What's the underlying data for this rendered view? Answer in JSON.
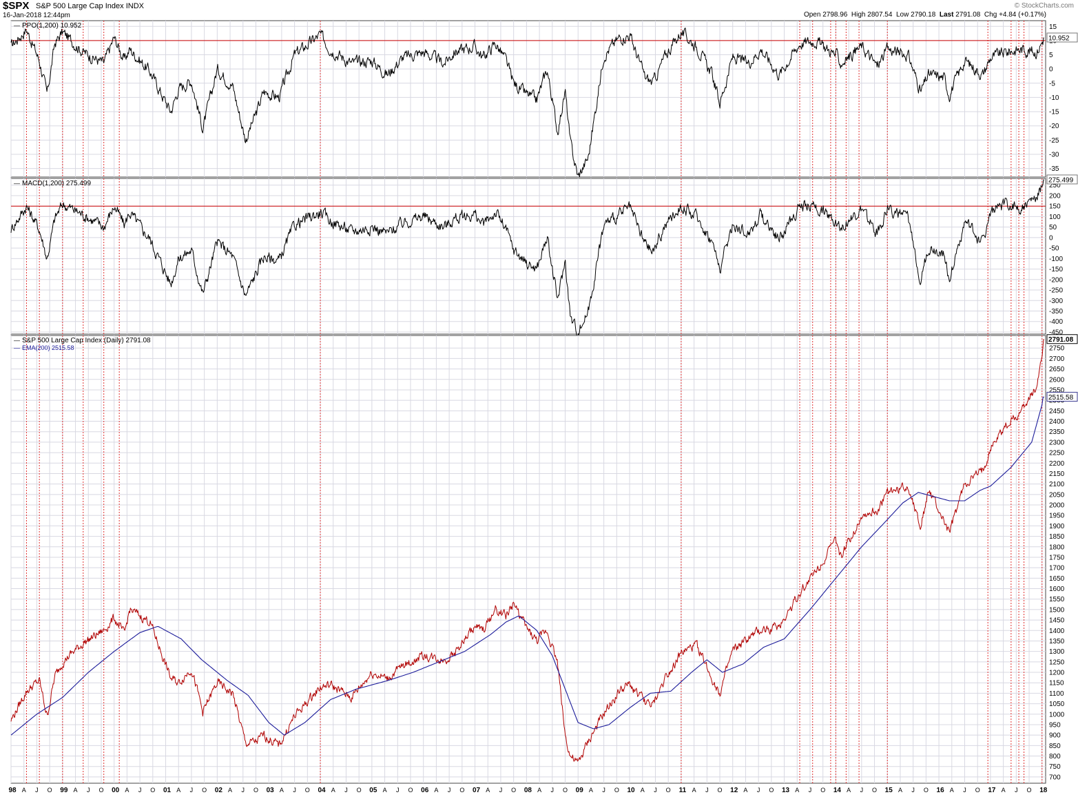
{
  "header": {
    "symbol": "$SPX",
    "name": "S&P 500 Large Cap Index",
    "exchange": "INDX",
    "date": "16-Jan-2018 12:44pm",
    "open_label": "Open",
    "open": "2798.96",
    "high_label": "High",
    "high": "2807.54",
    "low_label": "Low",
    "low": "2790.18",
    "last_label": "Last",
    "last": "2791.08",
    "chg_label": "Chg",
    "chg": "+4.84 (+0.17%)",
    "watermark": "© StockCharts.com"
  },
  "colors": {
    "price": "#b00000",
    "ema": "#1b1b9a",
    "indicator": "#000000",
    "threshold": "#cc0000",
    "event_line": "#e03030",
    "grid": "#d8d8e2",
    "label_box_border": "#3a3a90"
  },
  "chart_data": [
    {
      "type": "line",
      "panel": "ppo",
      "label": "PPO(1,200) 10.952",
      "current_value": "10.952",
      "ylim": [
        -38,
        17
      ],
      "yticks": [
        15,
        10,
        5,
        0,
        -5,
        -10,
        -15,
        -20,
        -25,
        -30,
        -35
      ],
      "threshold": 10,
      "series": [
        {
          "x": [
            1998.0,
            1998.3,
            1998.55,
            1998.7,
            1998.85,
            1999.0,
            1999.4,
            1999.8,
            2000.0,
            2000.2,
            2000.3,
            2000.7,
            2001.1,
            2001.25,
            2001.5,
            2001.72,
            2002.0,
            2002.3,
            2002.55,
            2002.77,
            2002.9,
            2003.2,
            2003.5,
            2004.0,
            2004.2,
            2004.6,
            2005.0,
            2005.3,
            2005.6,
            2006.0,
            2006.4,
            2006.6,
            2007.0,
            2007.15,
            2007.4,
            2007.6,
            2007.75,
            2008.0,
            2008.2,
            2008.4,
            2008.6,
            2008.75,
            2008.85,
            2009.0,
            2009.2,
            2009.5,
            2009.8,
            2010.0,
            2010.3,
            2010.45,
            2010.7,
            2011.0,
            2011.3,
            2011.6,
            2011.75,
            2012.0,
            2012.3,
            2012.55,
            2012.9,
            2013.3,
            2013.6,
            2014.0,
            2014.1,
            2014.5,
            2014.8,
            2015.0,
            2015.4,
            2015.65,
            2015.8,
            2016.1,
            2016.2,
            2016.5,
            2016.85,
            2017.0,
            2017.3,
            2017.6,
            2017.9,
            2018.04
          ],
          "y": [
            8,
            14,
            3,
            -9,
            9,
            13,
            6,
            2,
            11,
            3,
            7,
            -1,
            -15,
            -7,
            -4,
            -21,
            0,
            -6,
            -25,
            -15,
            -8,
            -10,
            5,
            12,
            7,
            2,
            3,
            -2,
            4,
            6,
            2,
            6,
            8,
            4,
            9,
            3,
            -5,
            -9,
            -11,
            0,
            -22,
            -8,
            -26,
            -38,
            -31,
            5,
            11,
            12,
            -3,
            -5,
            5,
            13,
            8,
            -2,
            -12,
            4,
            2,
            7,
            -2,
            9,
            10,
            5,
            2,
            8,
            1,
            7,
            5,
            -8,
            -2,
            -3,
            -9,
            3,
            -2,
            4,
            6,
            7,
            6,
            10.95
          ]
        }
      ]
    },
    {
      "type": "line",
      "panel": "macd",
      "label": "MACD(1,200) 275.499",
      "current_value": "275.499",
      "ylim": [
        -460,
        282
      ],
      "yticks": [
        250,
        200,
        150,
        100,
        50,
        0,
        -50,
        -100,
        -150,
        -200,
        -250,
        -300,
        -350,
        -400,
        -450
      ],
      "threshold": 150,
      "series": [
        {
          "x": [
            1998.0,
            1998.3,
            1998.55,
            1998.7,
            1998.85,
            1999.0,
            1999.4,
            1999.8,
            2000.0,
            2000.2,
            2000.3,
            2000.7,
            2001.1,
            2001.25,
            2001.5,
            2001.72,
            2002.0,
            2002.3,
            2002.55,
            2002.77,
            2002.9,
            2003.2,
            2003.5,
            2004.0,
            2004.2,
            2004.6,
            2005.0,
            2005.3,
            2005.6,
            2006.0,
            2006.4,
            2006.6,
            2007.0,
            2007.15,
            2007.4,
            2007.6,
            2007.75,
            2008.0,
            2008.2,
            2008.4,
            2008.6,
            2008.75,
            2008.85,
            2009.0,
            2009.2,
            2009.5,
            2009.8,
            2010.0,
            2010.3,
            2010.45,
            2010.7,
            2011.0,
            2011.3,
            2011.6,
            2011.75,
            2012.0,
            2012.3,
            2012.55,
            2012.9,
            2013.3,
            2013.6,
            2014.0,
            2014.1,
            2014.5,
            2014.8,
            2015.0,
            2015.4,
            2015.65,
            2015.8,
            2016.1,
            2016.2,
            2016.5,
            2016.85,
            2017.0,
            2017.3,
            2017.6,
            2017.9,
            2018.04
          ],
          "y": [
            40,
            150,
            40,
            -100,
            90,
            160,
            110,
            50,
            150,
            60,
            120,
            -10,
            -220,
            -100,
            -60,
            -270,
            -20,
            -90,
            -280,
            -160,
            -90,
            -110,
            60,
            120,
            80,
            30,
            50,
            20,
            70,
            100,
            50,
            90,
            110,
            60,
            120,
            40,
            -60,
            -120,
            -150,
            0,
            -300,
            -110,
            -380,
            -450,
            -350,
            60,
            110,
            140,
            -30,
            -70,
            60,
            150,
            100,
            -20,
            -150,
            60,
            20,
            110,
            -10,
            150,
            150,
            80,
            50,
            130,
            20,
            140,
            90,
            -200,
            -50,
            -70,
            -200,
            70,
            -20,
            120,
            160,
            140,
            190,
            275.5
          ]
        }
      ]
    },
    {
      "type": "line",
      "panel": "price",
      "label": "S&P 500 Large Cap Index (Daily) 2791.08",
      "ema_label": "EMA(200) 2515.58",
      "current_value": "2791.08",
      "ema_value": "2515.58",
      "ylim": [
        670,
        2810
      ],
      "yticks": [
        2750,
        2700,
        2650,
        2600,
        2550,
        2500,
        2450,
        2400,
        2350,
        2300,
        2250,
        2200,
        2150,
        2100,
        2050,
        2000,
        1950,
        1900,
        1850,
        1800,
        1750,
        1700,
        1650,
        1600,
        1550,
        1500,
        1450,
        1400,
        1350,
        1300,
        1250,
        1200,
        1150,
        1100,
        1050,
        1000,
        950,
        900,
        850,
        800,
        750,
        700
      ],
      "series": [
        {
          "name": "S&P 500 Large Cap Index (Daily)",
          "x": [
            1998.0,
            1998.3,
            1998.55,
            1998.7,
            1998.85,
            1999.0,
            1999.4,
            1999.8,
            2000.0,
            2000.2,
            2000.3,
            2000.7,
            2001.1,
            2001.25,
            2001.5,
            2001.72,
            2002.0,
            2002.3,
            2002.55,
            2002.77,
            2002.9,
            2003.2,
            2003.5,
            2004.0,
            2004.2,
            2004.6,
            2005.0,
            2005.3,
            2005.6,
            2006.0,
            2006.4,
            2006.6,
            2007.0,
            2007.15,
            2007.4,
            2007.6,
            2007.75,
            2008.0,
            2008.2,
            2008.4,
            2008.6,
            2008.75,
            2008.85,
            2009.0,
            2009.2,
            2009.5,
            2009.8,
            2010.0,
            2010.3,
            2010.45,
            2010.7,
            2011.0,
            2011.3,
            2011.6,
            2011.75,
            2012.0,
            2012.3,
            2012.55,
            2012.9,
            2013.3,
            2013.6,
            2014.0,
            2014.1,
            2014.5,
            2014.8,
            2015.0,
            2015.4,
            2015.65,
            2015.8,
            2016.1,
            2016.2,
            2016.5,
            2016.85,
            2017.0,
            2017.3,
            2017.6,
            2017.9,
            2018.04
          ],
          "y": [
            970,
            1110,
            1160,
            990,
            1180,
            1250,
            1340,
            1400,
            1460,
            1380,
            1500,
            1440,
            1170,
            1150,
            1220,
            1010,
            1150,
            1100,
            860,
            870,
            900,
            850,
            990,
            1130,
            1140,
            1080,
            1200,
            1170,
            1230,
            1280,
            1260,
            1290,
            1420,
            1400,
            1500,
            1470,
            1530,
            1410,
            1350,
            1400,
            1250,
            900,
            800,
            760,
            870,
            1000,
            1110,
            1140,
            1060,
            1040,
            1180,
            1290,
            1330,
            1170,
            1100,
            1300,
            1360,
            1400,
            1420,
            1580,
            1680,
            1830,
            1750,
            1950,
            1970,
            2060,
            2090,
            1900,
            2070,
            1920,
            1860,
            2100,
            2160,
            2270,
            2380,
            2450,
            2570,
            2791.08
          ]
        },
        {
          "name": "EMA(200)",
          "x": [
            1998.0,
            1998.5,
            1999.0,
            1999.5,
            2000.0,
            2000.5,
            2000.85,
            2001.3,
            2001.7,
            2002.2,
            2002.6,
            2003.0,
            2003.3,
            2003.7,
            2004.2,
            2004.7,
            2005.3,
            2005.8,
            2006.3,
            2006.8,
            2007.3,
            2007.6,
            2007.85,
            2008.2,
            2008.5,
            2008.75,
            2009.0,
            2009.3,
            2009.6,
            2010.0,
            2010.4,
            2010.8,
            2011.2,
            2011.5,
            2011.8,
            2012.2,
            2012.6,
            2013.0,
            2013.5,
            2014.0,
            2014.5,
            2015.0,
            2015.3,
            2015.6,
            2015.9,
            2016.2,
            2016.5,
            2016.8,
            2017.0,
            2017.4,
            2017.8,
            2018.04
          ],
          "y": [
            900,
            1000,
            1080,
            1200,
            1300,
            1390,
            1420,
            1360,
            1260,
            1160,
            1090,
            960,
            900,
            960,
            1070,
            1120,
            1160,
            1200,
            1250,
            1300,
            1380,
            1440,
            1470,
            1400,
            1280,
            1120,
            960,
            930,
            950,
            1030,
            1100,
            1110,
            1200,
            1260,
            1200,
            1240,
            1320,
            1360,
            1500,
            1650,
            1800,
            1930,
            2010,
            2060,
            2040,
            2020,
            2020,
            2070,
            2090,
            2180,
            2300,
            2515.58
          ]
        }
      ]
    }
  ],
  "x_axis": {
    "years": [
      "98",
      "99",
      "00",
      "01",
      "02",
      "03",
      "04",
      "05",
      "06",
      "07",
      "08",
      "09",
      "10",
      "11",
      "12",
      "13",
      "14",
      "15",
      "16",
      "17",
      "18"
    ],
    "month_labels": [
      "A",
      "J",
      "O"
    ]
  },
  "event_lines": [
    1998.3,
    1998.55,
    1999.0,
    1999.4,
    1999.8,
    2000.1,
    2004.0,
    2011.0,
    2013.3,
    2013.55,
    2013.9,
    2014.0,
    2014.2,
    2014.45,
    2015.0,
    2016.95,
    2017.4,
    2017.55,
    2017.65,
    2018.0
  ]
}
